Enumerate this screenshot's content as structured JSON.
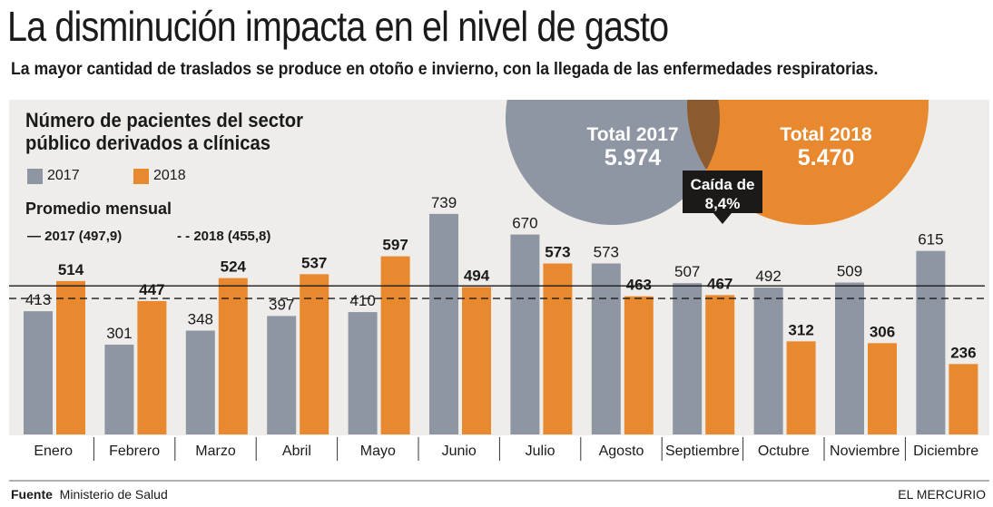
{
  "header": {
    "title": "La disminución impacta en el nivel de gasto",
    "subtitle": "La mayor cantidad de traslados se produce en otoño e invierno, con la llegada de las enfermedades respiratorias."
  },
  "colors": {
    "s2017": "#8e95a3",
    "s2018": "#e8892f",
    "overlap": "#8b5a2f",
    "panel": "#efedea",
    "callout": "#1c1a19"
  },
  "chart_data": {
    "type": "bar",
    "title": "Número de pacientes del sector público derivados a clínicas",
    "categories": [
      "Enero",
      "Febrero",
      "Marzo",
      "Abril",
      "Mayo",
      "Junio",
      "Julio",
      "Agosto",
      "Septiembre",
      "Octubre",
      "Noviembre",
      "Diciembre"
    ],
    "series": [
      {
        "name": "2017",
        "values": [
          413,
          301,
          348,
          397,
          410,
          739,
          670,
          573,
          507,
          492,
          509,
          615
        ]
      },
      {
        "name": "2018",
        "values": [
          514,
          447,
          524,
          537,
          597,
          494,
          573,
          463,
          467,
          312,
          306,
          236
        ]
      }
    ],
    "averages": {
      "label": "Promedio mensual",
      "s2017": {
        "label": "— 2017 (497,9)",
        "value": 497.9
      },
      "s2018": {
        "label": "- - 2018 (455,8)",
        "value": 455.8
      }
    },
    "totals": {
      "t2017_label": "Total 2017",
      "t2017_value": "5.974",
      "t2018_label": "Total 2018",
      "t2018_value": "5.470",
      "drop_label": "Caída de",
      "drop_value": "8,4%"
    },
    "legend_placement": "top-left",
    "grid": false
  },
  "footer": {
    "source_label": "Fuente",
    "source": "Ministerio de Salud",
    "brand": "EL MERCURIO"
  }
}
